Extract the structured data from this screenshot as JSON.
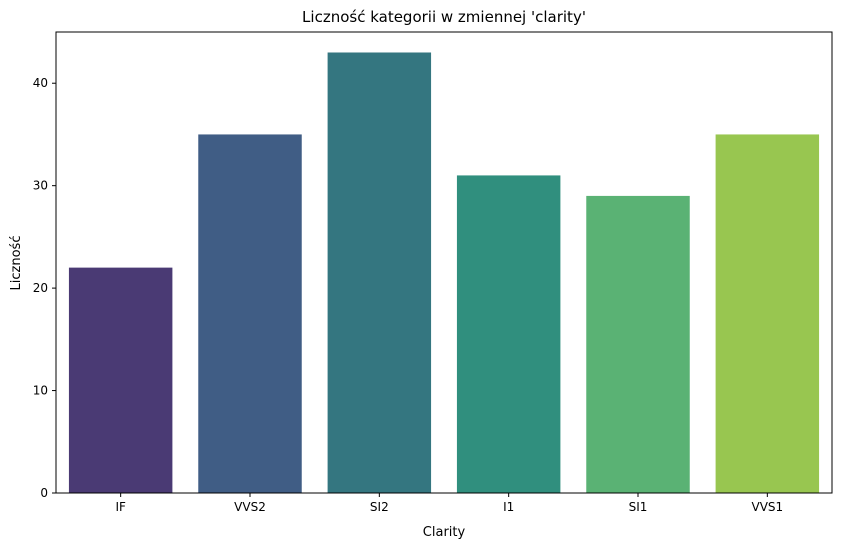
{
  "chart_data": {
    "type": "bar",
    "title": "Liczność kategorii w zmiennej 'clarity'",
    "xlabel": "Clarity",
    "ylabel": "Liczność",
    "categories": [
      "IF",
      "VVS2",
      "SI2",
      "I1",
      "SI1",
      "VVS1"
    ],
    "values": [
      22,
      35,
      43,
      31,
      29,
      35
    ],
    "colors": [
      "#4a3a74",
      "#405d85",
      "#347680",
      "#308f7e",
      "#5ab274",
      "#98c650"
    ],
    "ylim": [
      0,
      45
    ],
    "yticks": [
      0,
      10,
      20,
      30,
      40
    ],
    "grid": false,
    "legend": "none"
  }
}
